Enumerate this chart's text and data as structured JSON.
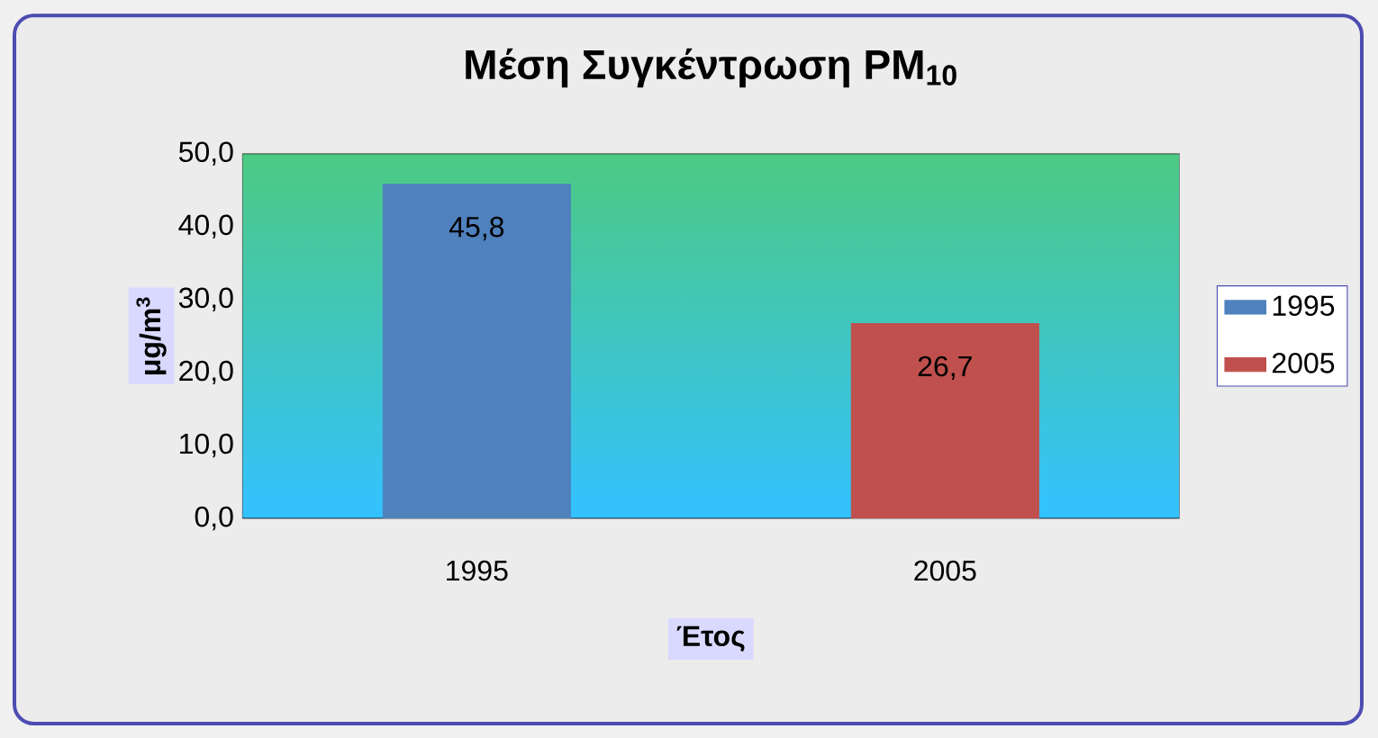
{
  "chart_data": {
    "type": "bar",
    "title": "Μέση Συγκέντρωση PM$_{10}$",
    "xlabel": "Έτος",
    "ylabel": "μg/m$^{3}$",
    "categories": [
      "1995",
      "2005"
    ],
    "series": [
      {
        "name": "1995",
        "color": "#4f81bd",
        "values": [
          45.8,
          null
        ],
        "value_labels": [
          "45,8",
          null
        ]
      },
      {
        "name": "2005",
        "color": "#c0504d",
        "values": [
          null,
          26.7
        ],
        "value_labels": [
          null,
          "26,7"
        ]
      }
    ],
    "ylim": [
      0,
      50
    ],
    "yticks": [
      {
        "value": 0,
        "label": "0,0"
      },
      {
        "value": 10,
        "label": "10,0"
      },
      {
        "value": 20,
        "label": "20,0"
      },
      {
        "value": 30,
        "label": "30,0"
      },
      {
        "value": 40,
        "label": "40,0"
      },
      {
        "value": 50,
        "label": "50,0"
      }
    ],
    "grid": "y",
    "legend": "right"
  }
}
